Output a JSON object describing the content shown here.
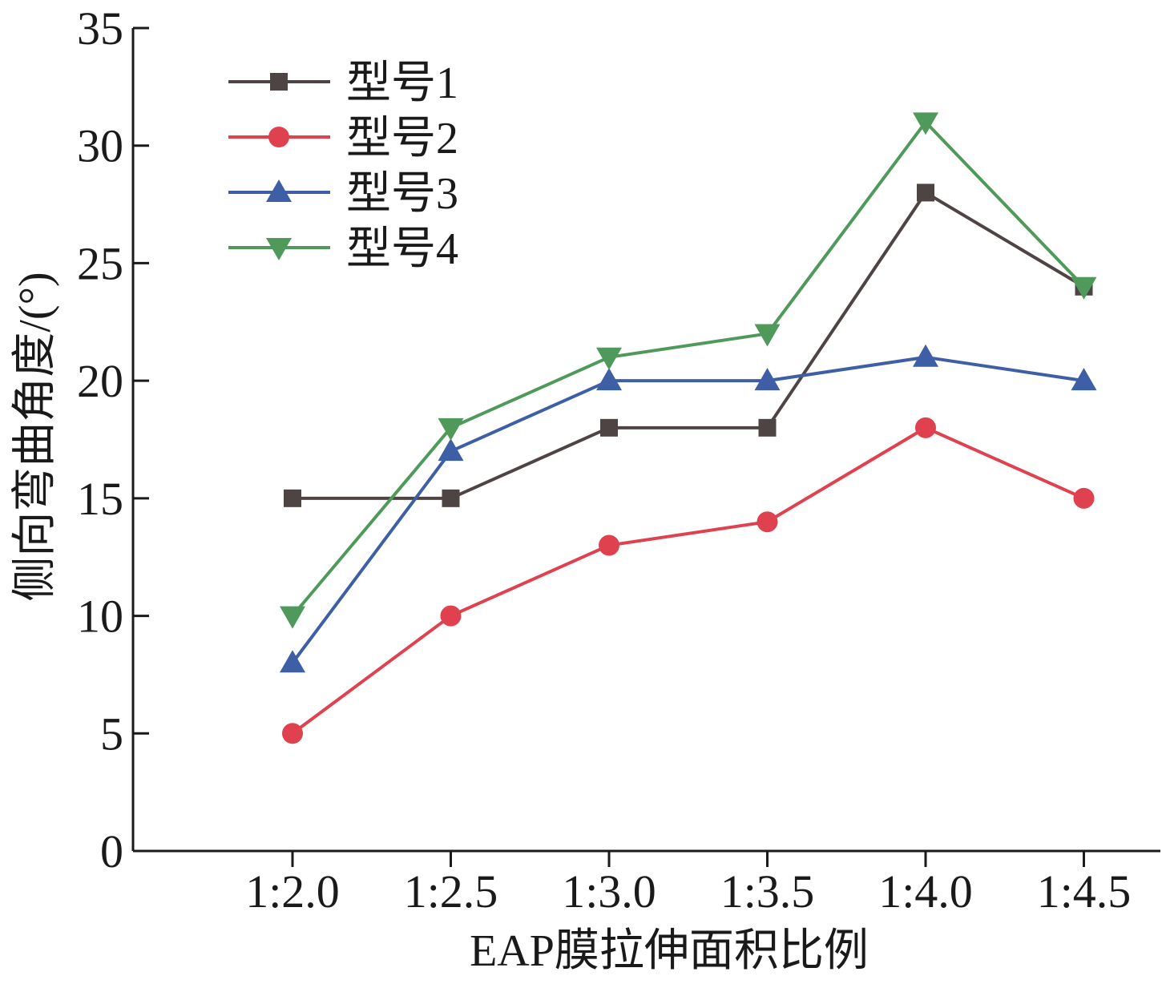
{
  "chart_data": {
    "type": "line",
    "xlabel": "EAP膜拉伸面积比例",
    "ylabel": "侧向弯曲角度/(°)",
    "categories": [
      "1:2.0",
      "1:2.5",
      "1:3.0",
      "1:3.5",
      "1:4.0",
      "1:4.5"
    ],
    "ylim": [
      0,
      35
    ],
    "yticks": [
      "0",
      "5",
      "10",
      "15",
      "20",
      "25",
      "30",
      "35"
    ],
    "grid": false,
    "legend_position": "top-left",
    "series": [
      {
        "name": "型号1",
        "marker": "square",
        "color": "#4f4444",
        "values": [
          15,
          15,
          18,
          18,
          28,
          24
        ]
      },
      {
        "name": "型号2",
        "marker": "circle",
        "color": "#e0414e",
        "values": [
          5,
          10,
          13,
          14,
          18,
          15
        ]
      },
      {
        "name": "型号3",
        "marker": "triangle-up",
        "color": "#3e5fa6",
        "values": [
          8,
          17,
          20,
          20,
          21,
          20
        ]
      },
      {
        "name": "型号4",
        "marker": "triangle-down",
        "color": "#4f9a5a",
        "values": [
          10,
          18,
          21,
          22,
          31,
          24
        ]
      }
    ]
  }
}
